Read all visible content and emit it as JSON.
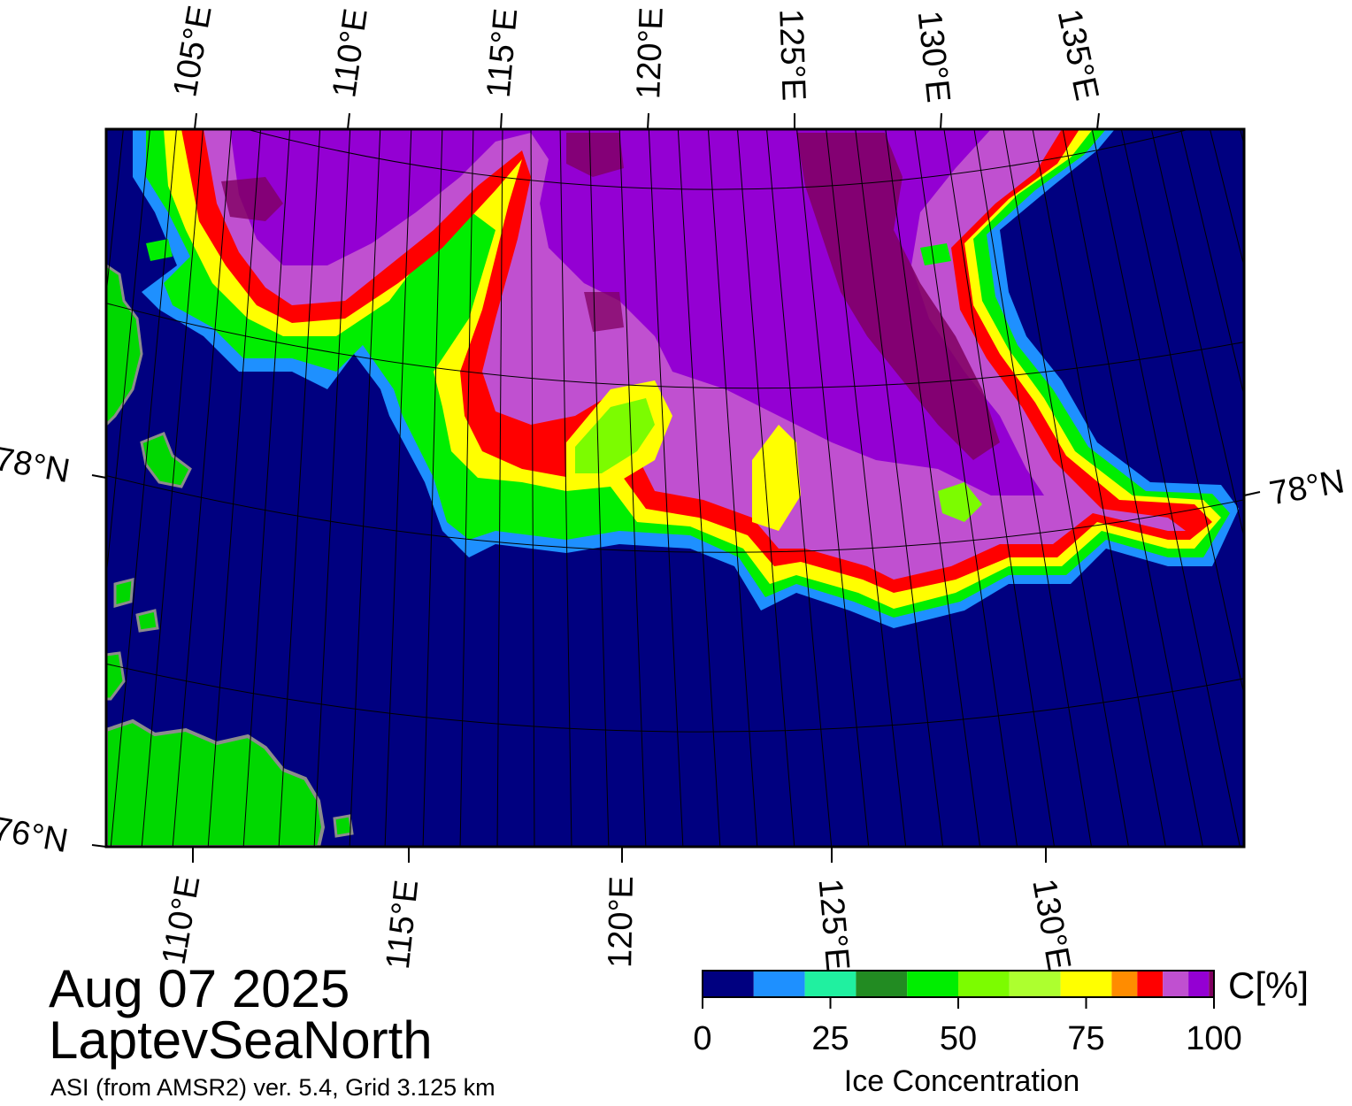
{
  "title": {
    "date": "Aug 07 2025",
    "region": "LaptevSeaNorth",
    "source": "ASI (from AMSR2) ver. 5.4,  Grid 3.125 km"
  },
  "map": {
    "top_lon_labels": [
      "105°E",
      "110°E",
      "115°E",
      "120°E",
      "125°E",
      "130°E",
      "135°E"
    ],
    "bottom_lon_labels": [
      "110°E",
      "115°E",
      "120°E",
      "125°E",
      "130°E"
    ],
    "left_lat_labels": [
      "78°N",
      "76°N"
    ],
    "right_lat_labels": [
      "78°N"
    ],
    "colors": {
      "ocean": "#000080",
      "land": "#00d800",
      "coast_mask": "#8c8c8c",
      "grid": "#000000"
    }
  },
  "colorbar": {
    "title": "Ice Concentration",
    "unit": "C[%]",
    "ticks": [
      "0",
      "25",
      "50",
      "75",
      "100"
    ],
    "bins": [
      {
        "from": 0,
        "to": 10,
        "color": "#000080"
      },
      {
        "from": 10,
        "to": 20,
        "color": "#1e90ff"
      },
      {
        "from": 20,
        "to": 30,
        "color": "#20f0a0"
      },
      {
        "from": 30,
        "to": 40,
        "color": "#228b22"
      },
      {
        "from": 40,
        "to": 50,
        "color": "#00ee00"
      },
      {
        "from": 50,
        "to": 60,
        "color": "#7cfc00"
      },
      {
        "from": 60,
        "to": 70,
        "color": "#adff2f"
      },
      {
        "from": 70,
        "to": 80,
        "color": "#ffff00"
      },
      {
        "from": 80,
        "to": 85,
        "color": "#ff8c00"
      },
      {
        "from": 85,
        "to": 90,
        "color": "#ff0000"
      },
      {
        "from": 90,
        "to": 95,
        "color": "#c050d0"
      },
      {
        "from": 95,
        "to": 99,
        "color": "#9400d3"
      },
      {
        "from": 99,
        "to": 100,
        "color": "#800060"
      }
    ]
  }
}
